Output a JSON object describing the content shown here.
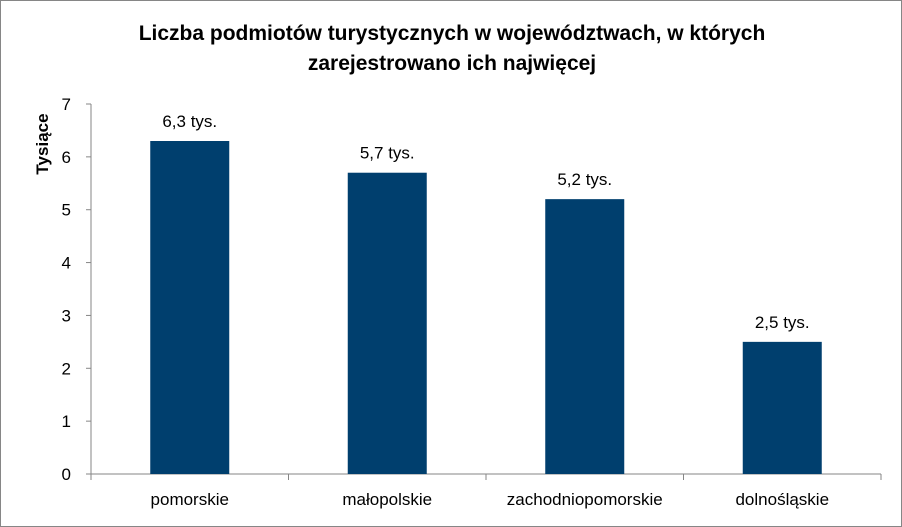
{
  "chart_data": {
    "type": "bar",
    "title": "Liczba podmiotów turystycznych w województwach, w których\nzarejestrowano ich najwięcej",
    "ylabel": "Tysiące",
    "xlabel": "",
    "categories": [
      "pomorskie",
      "małopolskie",
      "zachodniopomorskie",
      "dolnośląskie"
    ],
    "values": [
      6.3,
      5.7,
      5.2,
      2.5
    ],
    "data_labels": [
      "6,3 tys.",
      "5,7 tys.",
      "5,2 tys.",
      "2,5 tys."
    ],
    "ylim": [
      0,
      7
    ],
    "yticks": [
      0,
      1,
      2,
      3,
      4,
      5,
      6,
      7
    ],
    "grid": false,
    "legend": "none",
    "bar_color": "#003F6E",
    "axis_color": "#868686"
  }
}
